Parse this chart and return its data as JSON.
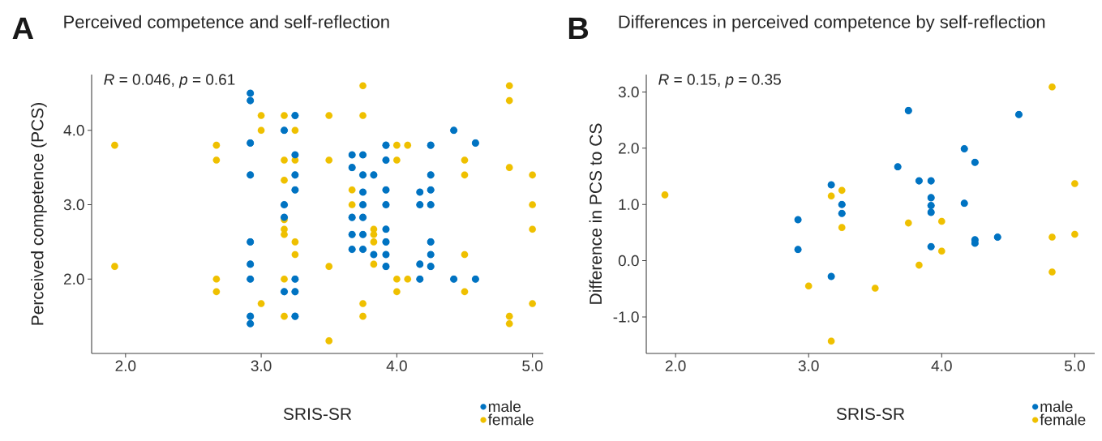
{
  "chart_data": [
    {
      "type": "scatter",
      "title": "Perceived competence and self-reflection",
      "xlabel": "SRIS-SR",
      "ylabel": "Perceived competence (PCS)",
      "annotations": [
        "A",
        "*R* = 0.046, *p* = 0.61"
      ],
      "xlim": [
        1.75,
        5.08
      ],
      "ylim": [
        1.0,
        4.75
      ],
      "xticks": [
        {
          "value": 2,
          "label": "2.0"
        },
        {
          "value": 3,
          "label": "3.0"
        },
        {
          "value": 4,
          "label": "4.0"
        },
        {
          "value": 5,
          "label": "5.0"
        }
      ],
      "yticks": [
        {
          "value": 2,
          "label": "2.0"
        },
        {
          "value": 3,
          "label": "3.0"
        },
        {
          "value": 4,
          "label": "4.0"
        }
      ],
      "grid": false,
      "legend": "bottom right",
      "marker": "circle",
      "series": [
        {
          "name": "male",
          "color": "#0073c2",
          "x": [
            2.92,
            2.92,
            2.92,
            2.92,
            2.92,
            2.92,
            2.92,
            2.92,
            2.92,
            3.17,
            3.17,
            3.17,
            3.17,
            3.25,
            3.25,
            3.25,
            3.25,
            3.25,
            3.25,
            3.25,
            3.67,
            3.67,
            3.67,
            3.67,
            3.67,
            3.75,
            3.75,
            3.75,
            3.75,
            3.75,
            3.75,
            3.75,
            3.83,
            3.83,
            3.92,
            3.92,
            3.92,
            3.92,
            3.92,
            3.92,
            3.92,
            3.92,
            4.17,
            4.17,
            4.17,
            4.17,
            4.25,
            4.25,
            4.25,
            4.25,
            4.25,
            4.25,
            4.25,
            4.42,
            4.42,
            4.58,
            4.58
          ],
          "values": [
            4.5,
            4.4,
            3.83,
            3.4,
            2.5,
            2.2,
            2.0,
            1.5,
            1.4,
            4.0,
            3.0,
            2.83,
            1.83,
            4.2,
            3.67,
            3.4,
            3.2,
            2.0,
            1.83,
            1.5,
            3.67,
            3.5,
            2.83,
            2.6,
            2.4,
            3.67,
            3.4,
            3.17,
            3.0,
            2.83,
            2.6,
            2.4,
            3.4,
            2.33,
            3.8,
            3.6,
            3.2,
            3.0,
            2.67,
            2.5,
            2.33,
            2.17,
            3.17,
            3.0,
            2.2,
            2.0,
            3.8,
            3.4,
            3.2,
            3.0,
            2.5,
            2.33,
            2.17,
            4.0,
            2.0,
            3.83,
            2.0
          ]
        },
        {
          "name": "female",
          "color": "#efc000",
          "x": [
            1.92,
            1.92,
            2.67,
            2.67,
            2.67,
            2.67,
            3.0,
            3.0,
            3.0,
            3.17,
            3.17,
            3.17,
            3.17,
            3.17,
            3.17,
            3.17,
            3.17,
            3.25,
            3.25,
            3.25,
            3.25,
            3.5,
            3.5,
            3.5,
            3.5,
            3.67,
            3.67,
            3.75,
            3.75,
            3.75,
            3.75,
            3.83,
            3.83,
            3.83,
            3.83,
            4.0,
            4.0,
            4.0,
            4.0,
            4.08,
            4.08,
            4.5,
            4.5,
            4.5,
            4.5,
            4.83,
            4.83,
            4.83,
            4.83,
            4.83,
            5.0,
            5.0,
            5.0,
            5.0
          ],
          "values": [
            3.8,
            2.17,
            3.8,
            3.6,
            2.0,
            1.83,
            4.2,
            4.0,
            1.67,
            4.2,
            3.6,
            3.33,
            2.8,
            2.67,
            2.6,
            2.0,
            1.5,
            4.0,
            3.6,
            2.5,
            2.33,
            4.2,
            3.6,
            2.17,
            1.17,
            3.2,
            3.0,
            4.6,
            4.2,
            1.67,
            1.5,
            2.67,
            2.6,
            2.5,
            2.2,
            3.8,
            3.6,
            2.0,
            1.83,
            3.8,
            2.0,
            3.6,
            3.4,
            2.33,
            1.83,
            4.6,
            4.4,
            3.5,
            1.5,
            1.4,
            3.4,
            3.0,
            2.67,
            1.67
          ]
        }
      ]
    },
    {
      "type": "scatter",
      "title": "Differences in perceived competence by self-reflection",
      "xlabel": "SRIS-SR",
      "ylabel": "Difference in PCS to CS",
      "annotations": [
        "B",
        "*R* = 0.15, *p* = 0.35"
      ],
      "xlim": [
        1.78,
        5.15
      ],
      "ylim": [
        -1.65,
        3.31
      ],
      "xticks": [
        {
          "value": 2,
          "label": "2.0"
        },
        {
          "value": 3,
          "label": "3.0"
        },
        {
          "value": 4,
          "label": "4.0"
        },
        {
          "value": 5,
          "label": "5.0"
        }
      ],
      "yticks": [
        {
          "value": -1,
          "label": "-1.0"
        },
        {
          "value": 0,
          "label": "0.0"
        },
        {
          "value": 1,
          "label": "1.0"
        },
        {
          "value": 2,
          "label": "2.0"
        },
        {
          "value": 3,
          "label": "3.0"
        }
      ],
      "grid": false,
      "legend": "bottom right",
      "marker": "circle",
      "series": [
        {
          "name": "male",
          "color": "#0073c2",
          "x": [
            2.92,
            2.92,
            3.17,
            3.17,
            3.25,
            3.25,
            3.67,
            3.75,
            3.83,
            3.92,
            3.92,
            3.92,
            3.92,
            3.92,
            4.17,
            4.17,
            4.25,
            4.25,
            4.25,
            4.42,
            4.58
          ],
          "values": [
            0.73,
            0.2,
            1.35,
            -0.28,
            1.0,
            0.84,
            1.67,
            2.67,
            1.42,
            1.42,
            1.12,
            0.98,
            0.86,
            0.25,
            1.99,
            1.02,
            1.75,
            0.37,
            0.31,
            0.42,
            2.6
          ]
        },
        {
          "name": "female",
          "color": "#efc000",
          "x": [
            1.92,
            3.0,
            3.17,
            3.17,
            3.25,
            3.25,
            3.5,
            3.75,
            3.83,
            4.0,
            4.0,
            4.83,
            4.83,
            4.83,
            5.0,
            5.0
          ],
          "values": [
            1.17,
            -0.45,
            1.15,
            -1.43,
            1.25,
            0.59,
            -0.49,
            0.67,
            -0.08,
            0.7,
            0.17,
            3.09,
            0.42,
            -0.2,
            1.37,
            0.47
          ]
        }
      ]
    }
  ]
}
